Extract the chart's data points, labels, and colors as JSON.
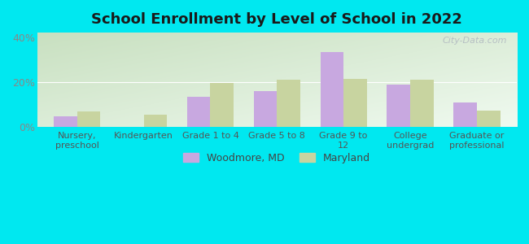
{
  "title": "School Enrollment by Level of School in 2022",
  "categories": [
    "Nursery,\npreschool",
    "Kindergarten",
    "Grade 1 to 4",
    "Grade 5 to 8",
    "Grade 9 to\n12",
    "College\nundergrad",
    "Graduate or\nprofessional"
  ],
  "woodmore": [
    5.0,
    0.0,
    13.5,
    16.0,
    33.5,
    19.0,
    11.0
  ],
  "maryland": [
    7.0,
    5.5,
    19.5,
    21.0,
    21.5,
    21.0,
    7.5
  ],
  "woodmore_color": "#c8a8e0",
  "maryland_color": "#c8d4a0",
  "background_outer": "#00e8f0",
  "ylim": [
    0,
    42
  ],
  "yticks": [
    0,
    20,
    40
  ],
  "ytick_labels": [
    "0%",
    "20%",
    "40%"
  ],
  "legend_woodmore": "Woodmore, MD",
  "legend_maryland": "Maryland",
  "watermark": "City-Data.com",
  "bar_width": 0.35
}
